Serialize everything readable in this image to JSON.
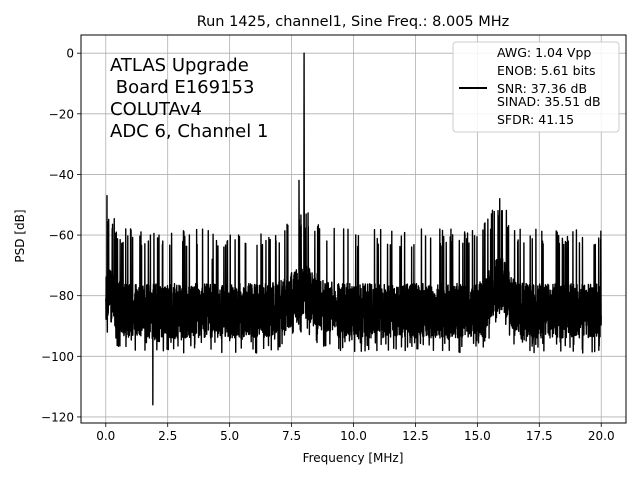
{
  "chart_data": {
    "type": "line",
    "title": "Run 1425, channel1, Sine Freq.: 8.005 MHz",
    "xlabel": "Frequency [MHz]",
    "ylabel": "PSD [dB]",
    "xlim": [
      -1.0,
      21.0
    ],
    "ylim": [
      -122,
      6
    ],
    "xticks": [
      0.0,
      2.5,
      5.0,
      7.5,
      10.0,
      12.5,
      15.0,
      17.5,
      20.0
    ],
    "xtick_labels": [
      "0.0",
      "2.5",
      "5.0",
      "7.5",
      "10.0",
      "12.5",
      "15.0",
      "17.5",
      "20.0"
    ],
    "yticks": [
      0,
      -20,
      -40,
      -60,
      -80,
      -100,
      -120
    ],
    "ytick_labels": [
      "0",
      "−20",
      "−40",
      "−60",
      "−80",
      "−100",
      "−120"
    ],
    "grid": true,
    "annotation_lines": [
      "ATLAS Upgrade",
      " Board E169153",
      "COLUTAv4",
      "ADC 6, Channel 1"
    ],
    "legend": {
      "placement": "top-right",
      "entries": [
        "AWG: 1.04 Vpp",
        "ENOB: 5.61 bits",
        "SNR: 37.36 dB",
        "SINAD: 35.51 dB",
        "SFDR: 41.15"
      ]
    },
    "line_color": "#000000",
    "series": [
      {
        "x_range": [
          0.0,
          20.0
        ],
        "points": 4096,
        "noise_floor_db": -85,
        "features": {
          "fundamental": {
            "x": 8.005,
            "y": 0
          },
          "dc_spike": {
            "x": 0.05,
            "y": -47
          },
          "harmonic_near_8": {
            "x": 7.8,
            "y": -42
          },
          "spur_near_16": {
            "x": 15.9,
            "y": -48
          },
          "dip_minimum": {
            "x": 1.9,
            "y": -116
          }
        }
      }
    ]
  }
}
